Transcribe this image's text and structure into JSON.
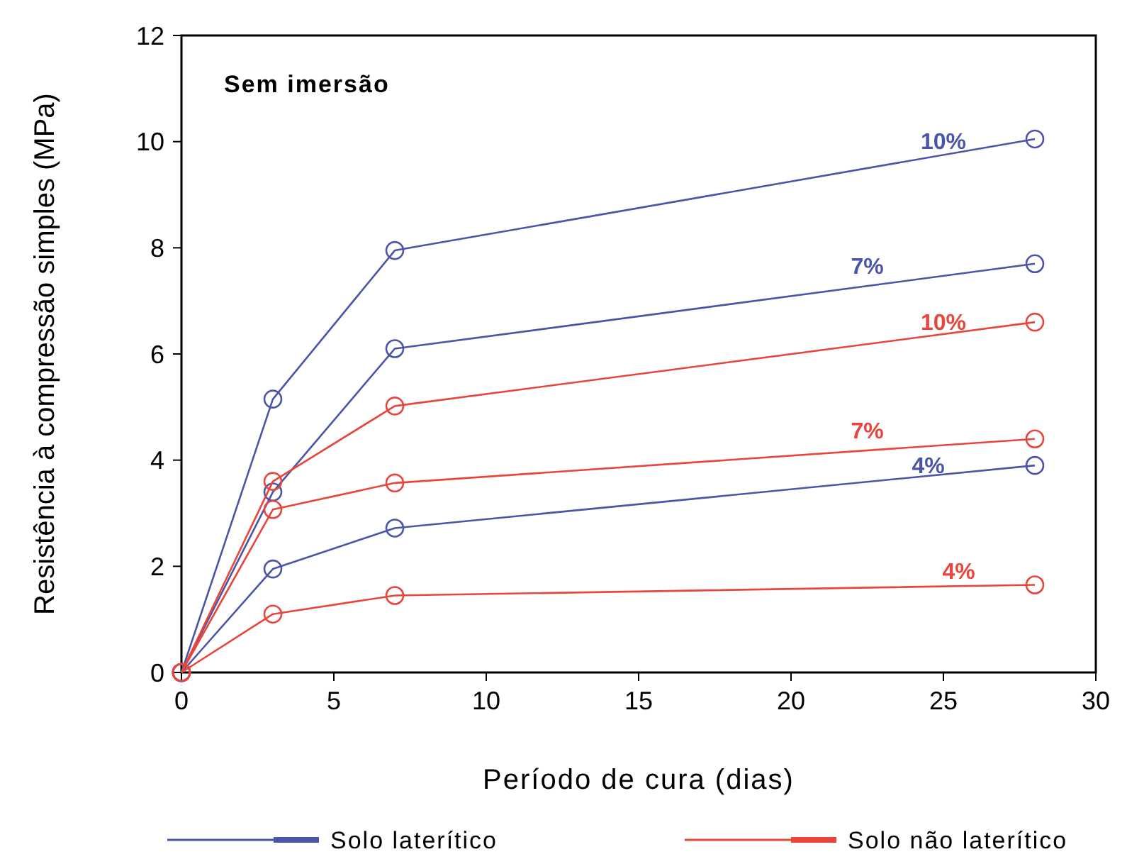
{
  "chart_data": {
    "type": "line",
    "title": "Sem imersão",
    "xlabel": "Período de cura (dias)",
    "ylabel": "Resistência à compressão simples (MPa)",
    "x": [
      0,
      3,
      7,
      28
    ],
    "xlim": [
      0,
      30
    ],
    "xticks": [
      0,
      5,
      10,
      15,
      20,
      25,
      30
    ],
    "ylim": [
      0,
      12
    ],
    "yticks": [
      0,
      2,
      4,
      6,
      8,
      10,
      12
    ],
    "marker": "circle",
    "legend": "bottom",
    "grid": false,
    "series": [
      {
        "name": "Solo laterítico",
        "color": "#4a55a8",
        "values": [
          0,
          5.15,
          7.95,
          10.05
        ]
      },
      {
        "color": "#4a55a8",
        "values": [
          0,
          3.4,
          6.1,
          7.7
        ]
      },
      {
        "color": "#4a55a8",
        "values": [
          0,
          1.95,
          2.72,
          3.9
        ]
      },
      {
        "name": "Solo não laterítico",
        "color": "#e8453c",
        "values": [
          0,
          3.6,
          5.02,
          6.6
        ]
      },
      {
        "color": "#e8453c",
        "values": [
          0,
          3.07,
          3.57,
          4.4
        ]
      },
      {
        "color": "#e8453c",
        "values": [
          0,
          1.1,
          1.45,
          1.65
        ]
      }
    ],
    "annotations": [
      {
        "text": "10%",
        "x": 25,
        "y": 9.7
      },
      {
        "text": "7%",
        "x": 22.5,
        "y": 7.35
      },
      {
        "text": "4%",
        "x": 24.5,
        "y": 3.6
      },
      {
        "text": "10%",
        "x": 25,
        "y": 6.3
      },
      {
        "text": "7%",
        "x": 22.5,
        "y": 4.25
      },
      {
        "text": "4%",
        "x": 25.5,
        "y": 1.6
      }
    ]
  }
}
